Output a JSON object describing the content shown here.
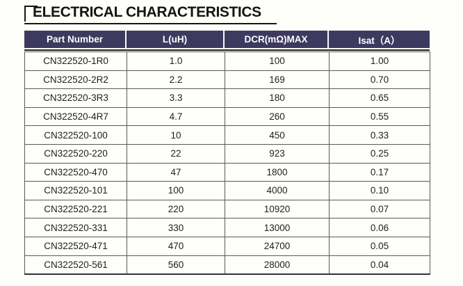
{
  "title": "ELECTRICAL CHARACTERISTICS",
  "colors": {
    "header_bg": "#3E3A5F",
    "header_text": "#FFFFFF",
    "title_rule": "#161616",
    "grid_line": "#585858",
    "page_bg": "#FEFEFA",
    "body_text": "#1E1E1E"
  },
  "table": {
    "headers": [
      "Part Number",
      "L(uH)",
      "DCR(mΩ)MAX",
      "Isat（A）"
    ],
    "rows": [
      {
        "part": "CN322520-1R0",
        "l_uh": "1.0",
        "dcr": "100",
        "isat": "1.00"
      },
      {
        "part": "CN322520-2R2",
        "l_uh": "2.2",
        "dcr": "169",
        "isat": "0.70"
      },
      {
        "part": "CN322520-3R3",
        "l_uh": "3.3",
        "dcr": "180",
        "isat": "0.65"
      },
      {
        "part": "CN322520-4R7",
        "l_uh": "4.7",
        "dcr": "260",
        "isat": "0.55"
      },
      {
        "part": "CN322520-100",
        "l_uh": "10",
        "dcr": "450",
        "isat": "0.33"
      },
      {
        "part": "CN322520-220",
        "l_uh": "22",
        "dcr": "923",
        "isat": "0.25"
      },
      {
        "part": "CN322520-470",
        "l_uh": "47",
        "dcr": "1800",
        "isat": "0.17"
      },
      {
        "part": "CN322520-101",
        "l_uh": "100",
        "dcr": "4000",
        "isat": "0.10"
      },
      {
        "part": "CN322520-221",
        "l_uh": "220",
        "dcr": "10920",
        "isat": "0.07"
      },
      {
        "part": "CN322520-331",
        "l_uh": "330",
        "dcr": "13000",
        "isat": "0.06"
      },
      {
        "part": "CN322520-471",
        "l_uh": "470",
        "dcr": "24700",
        "isat": "0.05"
      },
      {
        "part": "CN322520-561",
        "l_uh": "560",
        "dcr": "28000",
        "isat": "0.04"
      }
    ]
  }
}
